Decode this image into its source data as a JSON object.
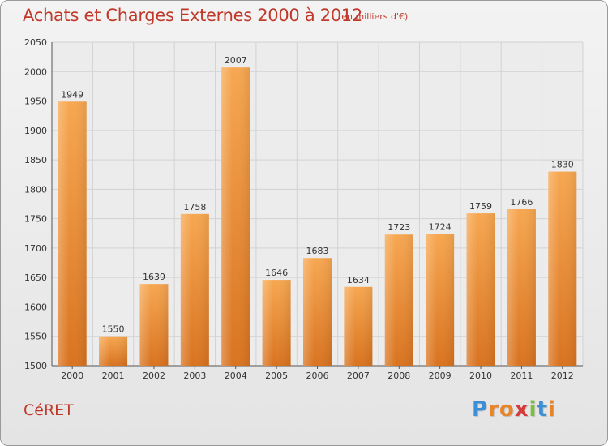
{
  "header": {
    "title": "Achats et Charges Externes 2000 à 2012",
    "subtitle": "(en milliers d'€)"
  },
  "footer": {
    "town": "CéRET",
    "logo_letters": [
      "P",
      "r",
      "o",
      "x",
      "i",
      "t",
      "i"
    ],
    "logo_colors": [
      "#3a8fd6",
      "#e8852b",
      "#e8852b",
      "#d63a3a",
      "#7cbf3a",
      "#3a8fd6",
      "#e8852b"
    ]
  },
  "chart_data": {
    "type": "bar",
    "categories": [
      "2000",
      "2001",
      "2002",
      "2003",
      "2004",
      "2005",
      "2006",
      "2007",
      "2008",
      "2009",
      "2010",
      "2011",
      "2012"
    ],
    "values": [
      1949,
      1550,
      1639,
      1758,
      2007,
      1646,
      1683,
      1634,
      1723,
      1724,
      1759,
      1766,
      1830
    ],
    "ylim": [
      1500,
      2050
    ],
    "yticks": [
      1500,
      1550,
      1600,
      1650,
      1700,
      1750,
      1800,
      1850,
      1900,
      1950,
      2000,
      2050
    ],
    "grid": true,
    "bar_color_top": "#f7a750",
    "bar_color_bottom": "#d9731f"
  }
}
